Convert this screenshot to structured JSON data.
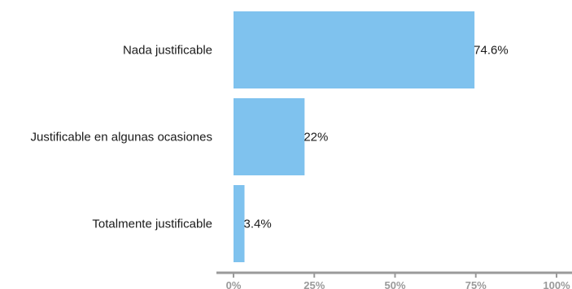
{
  "chart_data": {
    "type": "bar",
    "orientation": "horizontal",
    "categories": [
      "Nada justificable",
      "Justificable en algunas ocasiones",
      "Totalmente justificable"
    ],
    "values": [
      74.6,
      22,
      3.4
    ],
    "value_labels": [
      "74.6%",
      "22%",
      "3.4%"
    ],
    "xlim": [
      0,
      100
    ],
    "x_ticks": [
      0,
      25,
      50,
      75,
      100
    ],
    "x_tick_labels": [
      "0%",
      "25%",
      "50%",
      "75%",
      "100%"
    ],
    "bar_color": "#7fc2ee",
    "axis_color": "#9a9a9a",
    "grid": false
  }
}
